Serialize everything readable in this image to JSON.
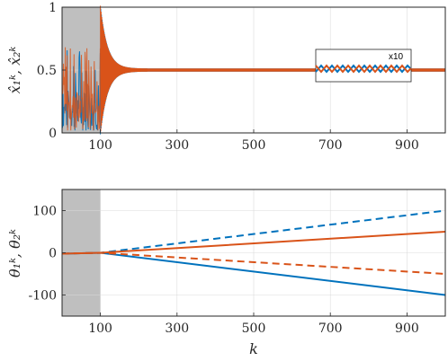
{
  "chart_data": [
    {
      "type": "line",
      "ylabel": "x̂₁ᵏ, x̂₂ᵏ",
      "xlim": [
        0,
        1000
      ],
      "ylim": [
        0,
        1
      ],
      "xticks": [
        100,
        300,
        500,
        700,
        900
      ],
      "yticks": [
        0,
        0.5,
        1
      ],
      "ytick_labels": [
        "0",
        "0.5",
        "1"
      ],
      "grid": true,
      "shaded_region": [
        0,
        100
      ],
      "series": [
        {
          "color": "#0072BD",
          "x": [
            0,
            100,
            130,
            200,
            1000
          ],
          "y": [
            0.2,
            0.2,
            0.5,
            0.5,
            0.5
          ]
        },
        {
          "color": "#D95319",
          "x": [
            0,
            100,
            130,
            200,
            1000
          ],
          "y": [
            0.2,
            0.2,
            0.5,
            0.5,
            0.5
          ]
        }
      ],
      "inset": {
        "label": "x10"
      }
    },
    {
      "type": "line",
      "xlabel": "k",
      "ylabel": "θ₁ᵏ, θ₂ᵏ",
      "xlim": [
        0,
        1000
      ],
      "ylim": [
        -150,
        150
      ],
      "xticks": [
        100,
        300,
        500,
        700,
        900
      ],
      "yticks": [
        -100,
        0,
        100
      ],
      "grid": true,
      "shaded_region": [
        0,
        100
      ],
      "series": [
        {
          "color": "#0072BD",
          "style": "solid",
          "x": [
            0,
            100,
            1000
          ],
          "y": [
            -2,
            0,
            -100
          ]
        },
        {
          "color": "#0072BD",
          "style": "dashed",
          "x": [
            0,
            100,
            1000
          ],
          "y": [
            -2,
            0,
            100
          ]
        },
        {
          "color": "#D95319",
          "style": "solid",
          "x": [
            0,
            100,
            1000
          ],
          "y": [
            -2,
            0,
            50
          ]
        },
        {
          "color": "#D95319",
          "style": "dashed",
          "x": [
            0,
            100,
            1000
          ],
          "y": [
            -2,
            0,
            -50
          ]
        }
      ]
    }
  ]
}
